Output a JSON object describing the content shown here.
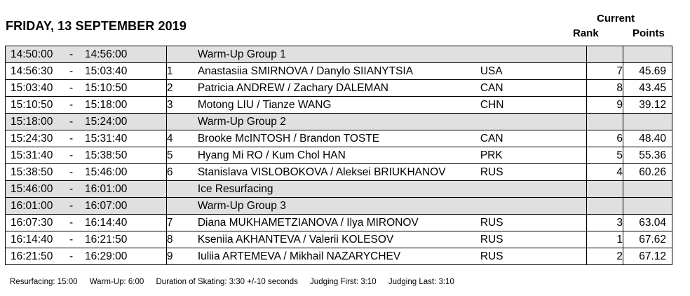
{
  "title": "FRIDAY, 13 SEPTEMBER 2019",
  "headers": {
    "current": "Current",
    "rank": "Rank",
    "points": "Points"
  },
  "rows": [
    {
      "start": "14:50:00",
      "dash": "-",
      "end": "14:56:00",
      "num": "",
      "name": "Warm-Up Group 1",
      "nat": "",
      "rank": "",
      "points": "",
      "shaded": true
    },
    {
      "start": "14:56:30",
      "dash": "-",
      "end": "15:03:40",
      "num": "1",
      "name": "Anastasiia SMIRNOVA / Danylo SIIANYTSIA",
      "nat": "USA",
      "rank": "7",
      "points": "45.69",
      "shaded": false
    },
    {
      "start": "15:03:40",
      "dash": "-",
      "end": "15:10:50",
      "num": "2",
      "name": "Patricia ANDREW / Zachary DALEMAN",
      "nat": "CAN",
      "rank": "8",
      "points": "43.45",
      "shaded": false
    },
    {
      "start": "15:10:50",
      "dash": "-",
      "end": "15:18:00",
      "num": "3",
      "name": "Motong LIU / Tianze WANG",
      "nat": "CHN",
      "rank": "9",
      "points": "39.12",
      "shaded": false
    },
    {
      "start": "15:18:00",
      "dash": "-",
      "end": "15:24:00",
      "num": "",
      "name": "Warm-Up Group 2",
      "nat": "",
      "rank": "",
      "points": "",
      "shaded": true
    },
    {
      "start": "15:24:30",
      "dash": "-",
      "end": "15:31:40",
      "num": "4",
      "name": "Brooke McINTOSH / Brandon TOSTE",
      "nat": "CAN",
      "rank": "6",
      "points": "48.40",
      "shaded": false
    },
    {
      "start": "15:31:40",
      "dash": "-",
      "end": "15:38:50",
      "num": "5",
      "name": "Hyang Mi RO / Kum Chol HAN",
      "nat": "PRK",
      "rank": "5",
      "points": "55.36",
      "shaded": false
    },
    {
      "start": "15:38:50",
      "dash": "-",
      "end": "15:46:00",
      "num": "6",
      "name": "Stanislava VISLOBOKOVA / Aleksei BRIUKHANOV",
      "nat": "RUS",
      "rank": "4",
      "points": "60.26",
      "shaded": false
    },
    {
      "start": "15:46:00",
      "dash": "-",
      "end": "16:01:00",
      "num": "",
      "name": "Ice Resurfacing",
      "nat": "",
      "rank": "",
      "points": "",
      "shaded": true
    },
    {
      "start": "16:01:00",
      "dash": "-",
      "end": "16:07:00",
      "num": "",
      "name": "Warm-Up Group 3",
      "nat": "",
      "rank": "",
      "points": "",
      "shaded": true
    },
    {
      "start": "16:07:30",
      "dash": "-",
      "end": "16:14:40",
      "num": "7",
      "name": "Diana MUKHAMETZIANOVA / Ilya MIRONOV",
      "nat": "RUS",
      "rank": "3",
      "points": "63.04",
      "shaded": false
    },
    {
      "start": "16:14:40",
      "dash": "-",
      "end": "16:21:50",
      "num": "8",
      "name": "Kseniia AKHANTEVA / Valerii KOLESOV",
      "nat": "RUS",
      "rank": "1",
      "points": "67.62",
      "shaded": false
    },
    {
      "start": "16:21:50",
      "dash": "-",
      "end": "16:29:00",
      "num": "9",
      "name": "Iuliia ARTEMEVA / Mikhail NAZARYCHEV",
      "nat": "RUS",
      "rank": "2",
      "points": "67.12",
      "shaded": false
    }
  ],
  "footer": {
    "resurfacing": "Resurfacing: 15:00",
    "warmup": "Warm-Up: 6:00",
    "duration": "Duration of Skating: 3:30 +/-10 seconds",
    "judging_first": "Judging First: 3:10",
    "judging_last": "Judging Last: 3:10"
  }
}
